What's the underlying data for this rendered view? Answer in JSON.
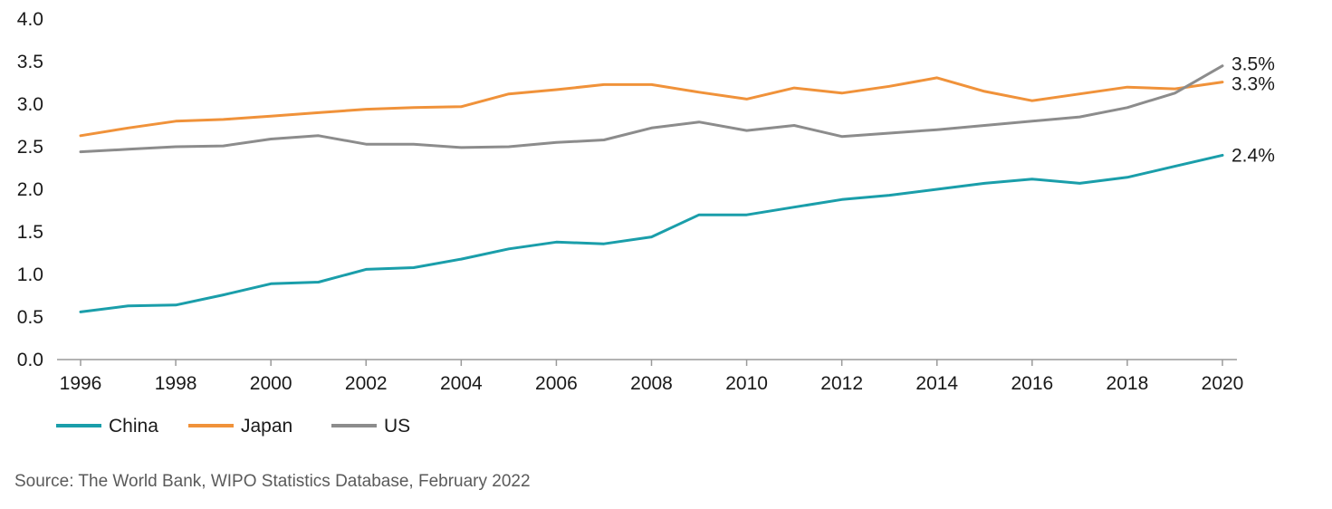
{
  "chart_data": {
    "type": "line",
    "x": [
      1996,
      1997,
      1998,
      1999,
      2000,
      2001,
      2002,
      2003,
      2004,
      2005,
      2006,
      2007,
      2008,
      2009,
      2010,
      2011,
      2012,
      2013,
      2014,
      2015,
      2016,
      2017,
      2018,
      2019,
      2020
    ],
    "x_ticks": [
      1996,
      1998,
      2000,
      2002,
      2004,
      2006,
      2008,
      2010,
      2012,
      2014,
      2016,
      2018,
      2020
    ],
    "ylim": [
      0,
      4
    ],
    "y_ticks": [
      "0.0",
      "0.5",
      "1.0",
      "1.5",
      "2.0",
      "2.5",
      "3.0",
      "3.5",
      "4.0"
    ],
    "grid": false,
    "legend_position": "bottom-left",
    "series": [
      {
        "name": "China",
        "color": "#1a9eaa",
        "values": [
          0.56,
          0.63,
          0.64,
          0.76,
          0.89,
          0.91,
          1.06,
          1.08,
          1.18,
          1.3,
          1.38,
          1.36,
          1.44,
          1.7,
          1.7,
          1.79,
          1.88,
          1.93,
          2.0,
          2.07,
          2.12,
          2.07,
          2.14,
          2.27,
          2.4
        ],
        "end_label": "2.4%"
      },
      {
        "name": "Japan",
        "color": "#f0923a",
        "values": [
          2.63,
          2.72,
          2.8,
          2.82,
          2.86,
          2.9,
          2.94,
          2.96,
          2.97,
          3.12,
          3.17,
          3.23,
          3.23,
          3.14,
          3.06,
          3.19,
          3.13,
          3.21,
          3.31,
          3.15,
          3.04,
          3.12,
          3.2,
          3.18,
          3.26
        ],
        "end_label": "3.3%"
      },
      {
        "name": "US",
        "color": "#8c8c8c",
        "values": [
          2.44,
          2.47,
          2.5,
          2.51,
          2.59,
          2.63,
          2.53,
          2.53,
          2.49,
          2.5,
          2.55,
          2.58,
          2.72,
          2.79,
          2.69,
          2.75,
          2.62,
          2.66,
          2.7,
          2.75,
          2.8,
          2.85,
          2.96,
          3.13,
          3.45
        ],
        "end_label": "3.5%"
      }
    ]
  },
  "source_text": "Source: The World Bank, WIPO Statistics Database, February 2022"
}
